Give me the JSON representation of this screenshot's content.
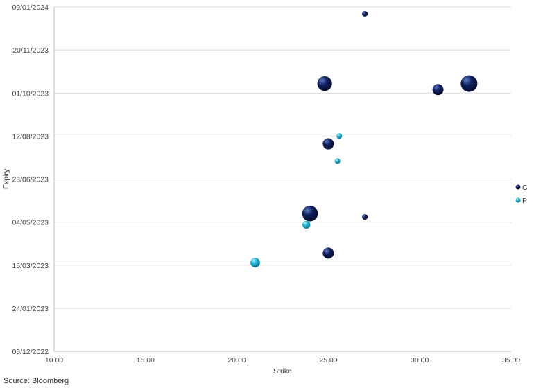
{
  "source": "Source: Bloomberg",
  "colors": {
    "grid": "#d9d9d9",
    "C": {
      "base": "#0e1f5c",
      "highlight": "#5f7dc9",
      "shadow": "#050c2a"
    },
    "P": {
      "base": "#1fb5d6",
      "highlight": "#b7f0fb",
      "shadow": "#0a6e86"
    }
  },
  "chart_data": {
    "type": "bubble",
    "xlabel": "Strike",
    "ylabel": "Expiry",
    "xlim": [
      10,
      35
    ],
    "ylim": [
      "2022-12-05",
      "2024-01-09"
    ],
    "x_ticks": [
      "10.00",
      "15.00",
      "20.00",
      "25.00",
      "30.00",
      "35.00"
    ],
    "y_ticks": [
      "05/12/2022",
      "24/01/2023",
      "15/03/2023",
      "04/05/2023",
      "23/06/2023",
      "12/08/2023",
      "01/10/2023",
      "20/11/2023",
      "09/01/2024"
    ],
    "legend": {
      "position": "right",
      "entries": [
        "C",
        "P"
      ]
    },
    "grid": {
      "horizontal": true,
      "vertical": false
    },
    "series": [
      {
        "name": "C",
        "points": [
          {
            "x": 27.0,
            "y": "2024-01-01",
            "size": 1
          },
          {
            "x": 24.8,
            "y": "2023-10-12",
            "size": 7
          },
          {
            "x": 31.0,
            "y": "2023-10-05",
            "size": 4
          },
          {
            "x": 32.7,
            "y": "2023-10-12",
            "size": 9
          },
          {
            "x": 25.0,
            "y": "2023-08-03",
            "size": 4
          },
          {
            "x": 24.0,
            "y": "2023-05-14",
            "size": 8
          },
          {
            "x": 27.0,
            "y": "2023-05-10",
            "size": 1
          },
          {
            "x": 25.0,
            "y": "2023-03-29",
            "size": 4
          }
        ]
      },
      {
        "name": "P",
        "points": [
          {
            "x": 25.6,
            "y": "2023-08-12",
            "size": 1
          },
          {
            "x": 25.5,
            "y": "2023-07-14",
            "size": 1
          },
          {
            "x": 23.8,
            "y": "2023-05-01",
            "size": 2
          },
          {
            "x": 21.0,
            "y": "2023-03-18",
            "size": 3
          }
        ]
      }
    ]
  }
}
